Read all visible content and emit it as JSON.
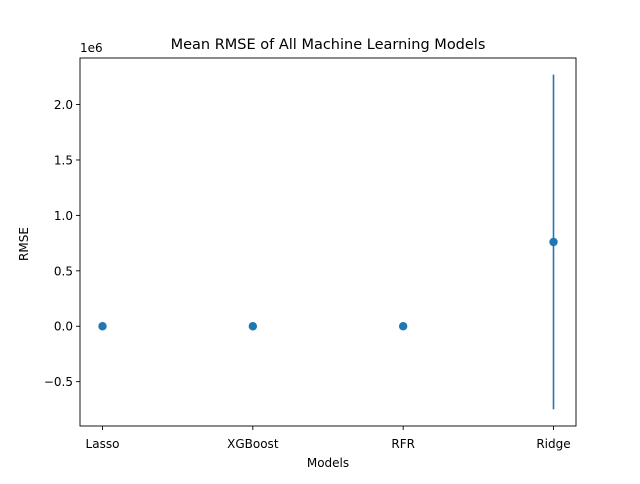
{
  "chart_data": {
    "type": "scatter",
    "title": "Mean RMSE of All Machine Learning Models",
    "xlabel": "Models",
    "ylabel": "RMSE",
    "y_offset_label": "1e6",
    "categories": [
      "Lasso",
      "XGBoost",
      "RFR",
      "Ridge"
    ],
    "series": [
      {
        "values": [
          0,
          0,
          0,
          760000
        ],
        "error_low": [
          0,
          0,
          0,
          -750000
        ],
        "error_high": [
          0,
          0,
          0,
          2270000
        ],
        "color": "#1f77b4"
      }
    ],
    "ylim": [
      -900000,
      2420000
    ],
    "yticks": [
      -500000,
      0,
      500000,
      1000000,
      1500000,
      2000000
    ],
    "ytick_labels": [
      "−0.5",
      "0.0",
      "0.5",
      "1.0",
      "1.5",
      "2.0"
    ],
    "grid": false,
    "legend": "none"
  }
}
